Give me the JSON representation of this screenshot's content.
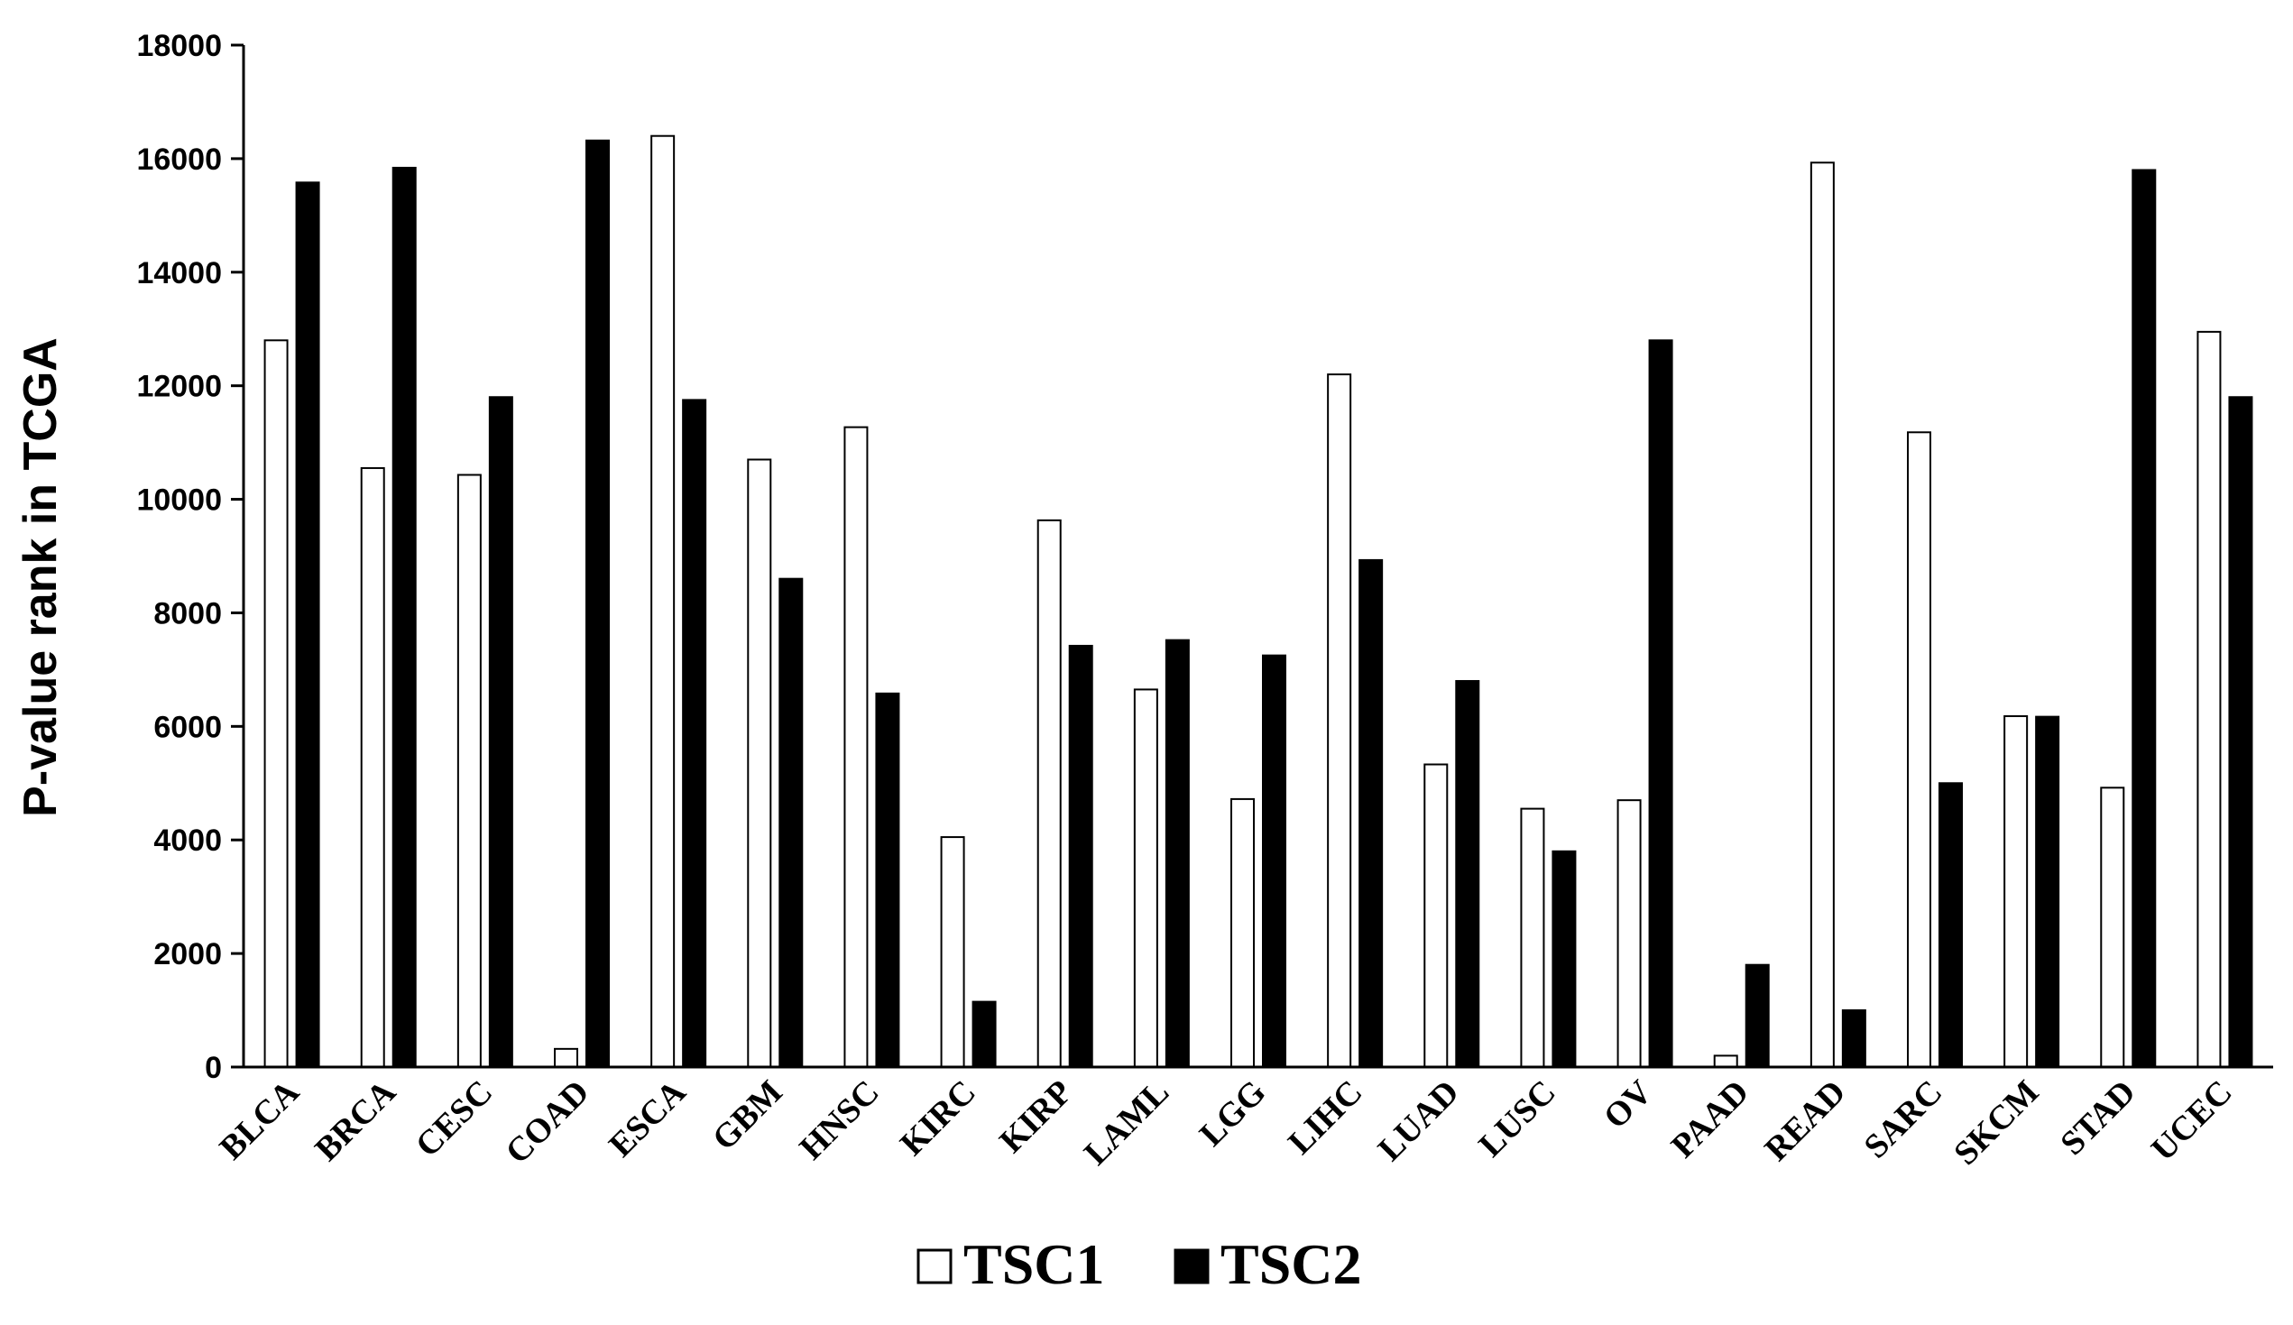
{
  "chart_data": {
    "type": "bar",
    "ylabel": "P-value rank in TCGA",
    "xlabel": "",
    "ylim": [
      0,
      18000
    ],
    "yticks": [
      0,
      2000,
      4000,
      6000,
      8000,
      10000,
      12000,
      14000,
      16000,
      18000
    ],
    "grid": false,
    "legend_position": "bottom",
    "categories": [
      "BLCA",
      "BRCA",
      "CESC",
      "COAD",
      "ESCA",
      "GBM",
      "HNSC",
      "KIRC",
      "KIRP",
      "LAML",
      "LGG",
      "LIHC",
      "LUAD",
      "LUSC",
      "OV",
      "PAAD",
      "READ",
      "SARC",
      "SKCM",
      "STAD",
      "UCEC"
    ],
    "series": [
      {
        "name": "TSC1",
        "color": "#ffffff",
        "values": [
          12800,
          10550,
          10430,
          320,
          16400,
          10700,
          11270,
          4050,
          9630,
          6650,
          4720,
          12200,
          5330,
          4550,
          4700,
          200,
          15930,
          11180,
          6180,
          4920,
          12950
        ]
      },
      {
        "name": "TSC2",
        "color": "#000000",
        "values": [
          15580,
          15840,
          11800,
          16320,
          11750,
          8600,
          6580,
          1150,
          7420,
          7520,
          7250,
          8930,
          6800,
          3800,
          12800,
          1800,
          1000,
          5000,
          6170,
          15800,
          11800
        ]
      }
    ]
  }
}
